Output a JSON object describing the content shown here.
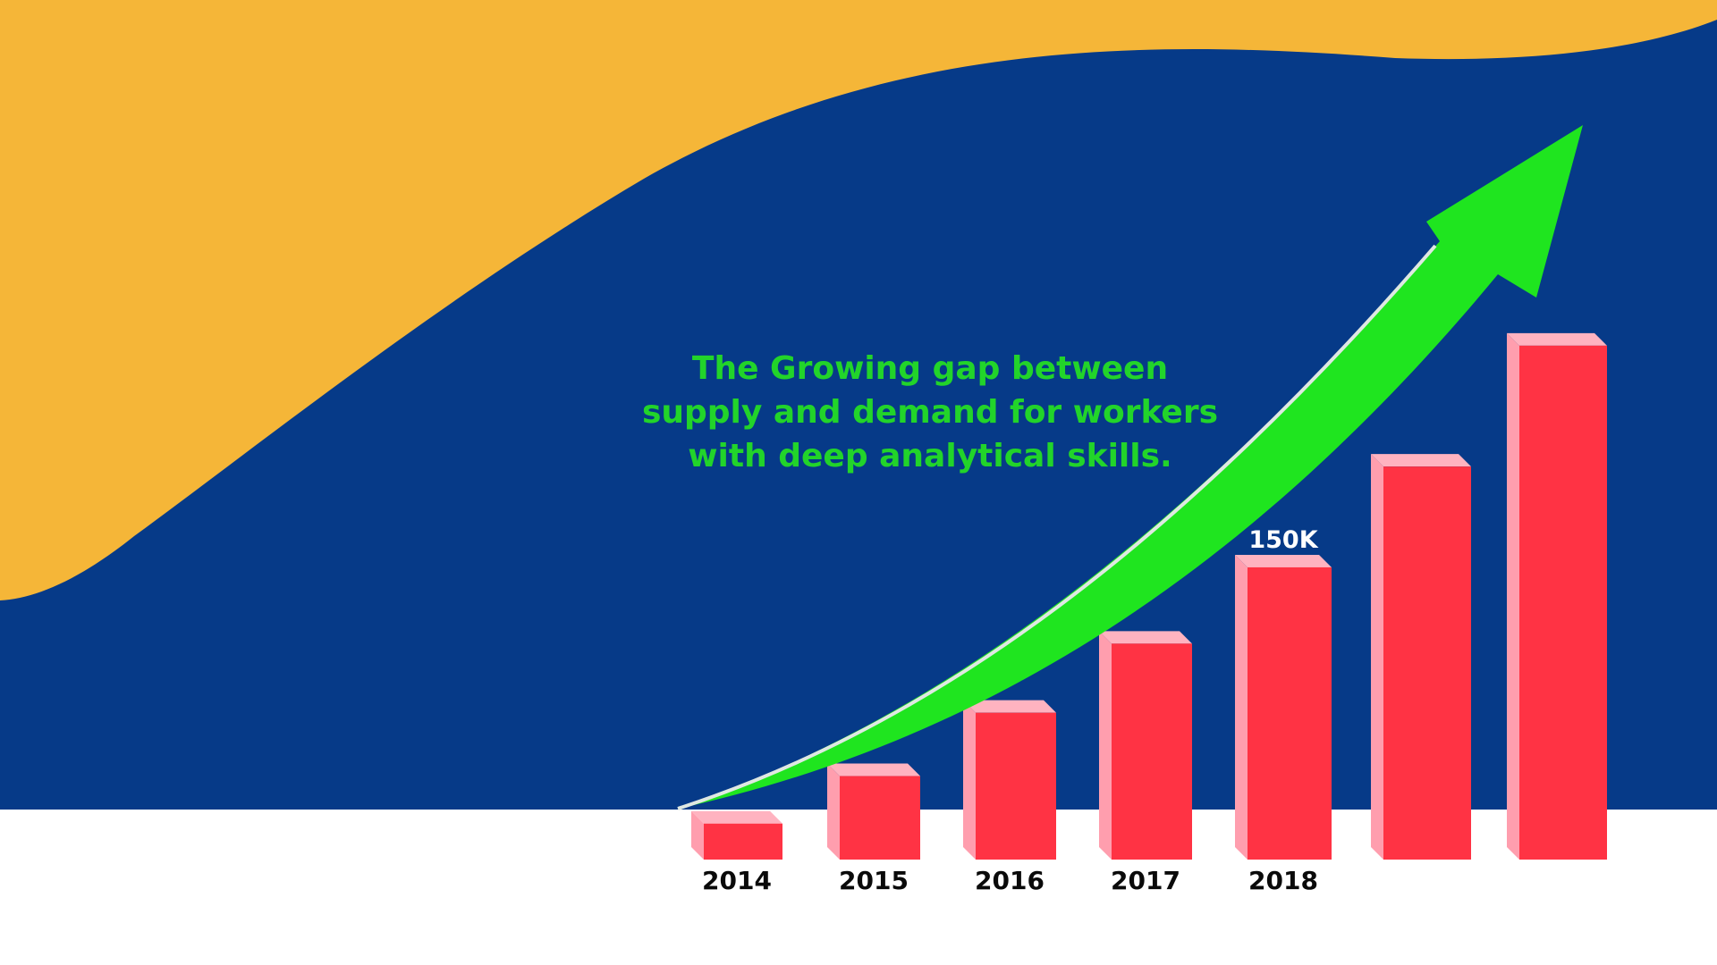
{
  "colors": {
    "background_top": "#f5b638",
    "background_main": "#063a88",
    "background_bottom": "#ffffff",
    "bar_front": "#ff3344",
    "bar_side": "#ff9eae",
    "bar_top": "#ffb3c0",
    "arrow": "#1fe51f",
    "headline": "#22d42a",
    "year_label": "#0a0a0a",
    "value_label": "#ffffff"
  },
  "headline_lines": [
    "The Growing gap between",
    "supply and demand for workers",
    "with deep analytical skills."
  ],
  "chart_data": {
    "type": "bar",
    "categories": [
      "2014",
      "2015",
      "2016",
      "2017",
      "2018",
      "",
      ""
    ],
    "values": [
      25,
      58,
      102,
      150,
      203,
      273,
      357
    ],
    "data_labels": [
      "",
      "",
      "",
      "",
      "150K",
      "",
      ""
    ],
    "title": "",
    "xlabel": "",
    "ylabel": "",
    "ylim": [
      0,
      360
    ],
    "grid": false,
    "legend": "none",
    "trend_arrow": true
  }
}
